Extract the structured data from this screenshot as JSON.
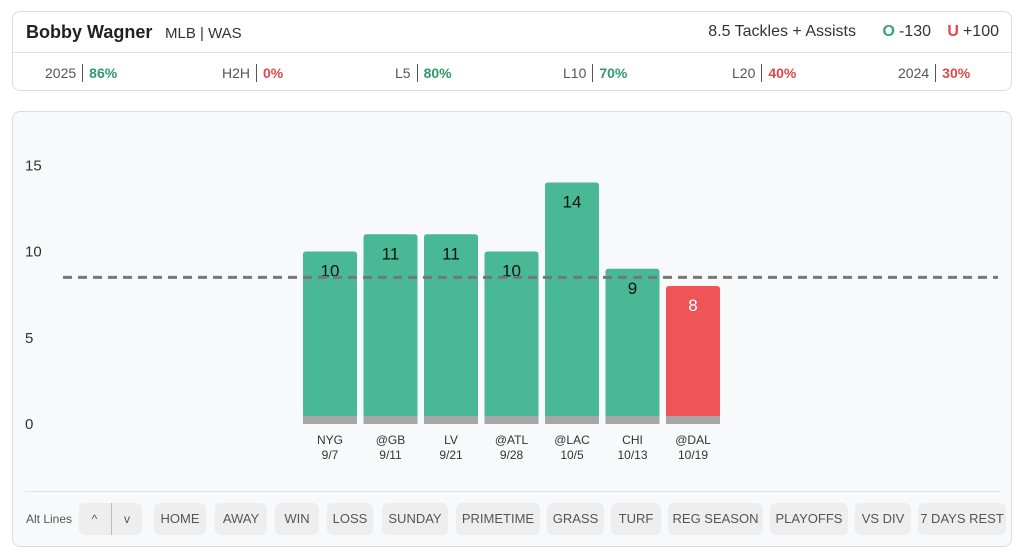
{
  "header": {
    "player_name": "Bobby Wagner",
    "player_meta": "MLB | WAS",
    "prop_line": "8.5 Tackles + Assists",
    "over": {
      "letter": "O",
      "odds": "-130"
    },
    "under": {
      "letter": "U",
      "odds": "+100"
    }
  },
  "hit_rates": [
    {
      "label": "2025",
      "value": "86%",
      "status": "green"
    },
    {
      "label": "H2H",
      "value": "0%",
      "status": "red"
    },
    {
      "label": "L5",
      "value": "80%",
      "status": "green"
    },
    {
      "label": "L10",
      "value": "70%",
      "status": "green"
    },
    {
      "label": "L20",
      "value": "40%",
      "status": "red"
    },
    {
      "label": "2024",
      "value": "30%",
      "status": "red"
    }
  ],
  "colors": {
    "over_bar": "#48b994",
    "under_bar": "#ef5557",
    "bar_base": "#a6a6a6",
    "line": "#777777"
  },
  "chart_data": {
    "type": "bar",
    "title": "",
    "xlabel": "",
    "ylabel": "",
    "line_value": 8.5,
    "ylim": [
      0,
      15
    ],
    "yticks": [
      0,
      5,
      10,
      15
    ],
    "categories": [
      {
        "opponent": "NYG",
        "date": "9/7"
      },
      {
        "opponent": "@GB",
        "date": "9/11"
      },
      {
        "opponent": "LV",
        "date": "9/21"
      },
      {
        "opponent": "@ATL",
        "date": "9/28"
      },
      {
        "opponent": "@LAC",
        "date": "10/5"
      },
      {
        "opponent": "CHI",
        "date": "10/13"
      },
      {
        "opponent": "@DAL",
        "date": "10/19"
      }
    ],
    "values": [
      10,
      11,
      11,
      10,
      14,
      9,
      8
    ]
  },
  "filters": {
    "alt_lines_label": "Alt Lines",
    "alt_up": "^",
    "alt_down": "v",
    "chips": [
      "HOME",
      "AWAY",
      "WIN",
      "LOSS",
      "SUNDAY",
      "PRIMETIME",
      "GRASS",
      "TURF",
      "REG SEASON",
      "PLAYOFFS",
      "VS DIV",
      "7 DAYS REST"
    ]
  }
}
